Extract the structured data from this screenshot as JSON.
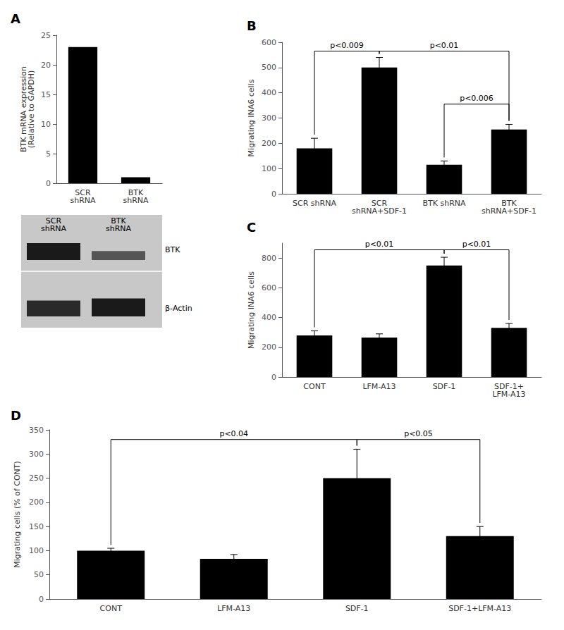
{
  "chart_data": [
    {
      "type": "bar",
      "title": "A",
      "categories": [
        "SCR\nshRNA",
        "BTK\nshRNA"
      ],
      "values": [
        23,
        1.0
      ],
      "ylabel": "BTK mRNA expression\n(Relative to GAPDH)",
      "ylim": [
        0,
        25
      ],
      "yticks": [
        0,
        5,
        10,
        15,
        20,
        25
      ],
      "color": "#000000",
      "grid": false
    },
    {
      "type": "blot",
      "annotations": [
        "SCR\nshRNA",
        "BTK\nshRNA",
        "BTK",
        "β-Actin"
      ]
    },
    {
      "type": "bar",
      "title": "B",
      "categories": [
        "SCR shRNA",
        "SCR\nshRNA+SDF-1",
        "BTK shRNA",
        "BTK\nshRNA+SDF-1"
      ],
      "values": [
        180,
        500,
        115,
        255
      ],
      "errors": [
        40,
        40,
        15,
        20
      ],
      "ylabel": "Migrating INA6 cells",
      "ylim": [
        0,
        600
      ],
      "yticks": [
        0,
        100,
        200,
        300,
        400,
        500,
        600
      ],
      "color": "#000000",
      "grid": false,
      "annotations": [
        {
          "text": "p<0.009",
          "x": [
            "SCR shRNA",
            "SCR\nshRNA+SDF-1"
          ],
          "y": 565
        },
        {
          "text": "p<0.01",
          "x": [
            "SCR\nshRNA+SDF-1",
            "BTK\nshRNA+SDF-1"
          ],
          "y": 565
        },
        {
          "text": "p<0.006",
          "x": [
            "BTK shRNA",
            "BTK\nshRNA+SDF-1"
          ],
          "y": 355
        }
      ]
    },
    {
      "type": "bar",
      "title": "C",
      "categories": [
        "CONT",
        "LFM-A13",
        "SDF-1",
        "SDF-1+\nLFM-A13"
      ],
      "values": [
        280,
        265,
        750,
        330
      ],
      "errors": [
        30,
        25,
        55,
        30
      ],
      "ylabel": "Migrating INA6 cells",
      "ylim": [
        0,
        900
      ],
      "yticks": [
        0,
        200,
        400,
        600,
        800
      ],
      "color": "#000000",
      "grid": false,
      "annotations": [
        {
          "text": "p<0.01",
          "x": [
            "CONT",
            "SDF-1"
          ],
          "y": 855
        },
        {
          "text": "p<0.01",
          "x": [
            "SDF-1",
            "SDF-1+\nLFM-A13"
          ],
          "y": 855
        }
      ]
    },
    {
      "type": "bar",
      "title": "D",
      "categories": [
        "CONT",
        "LFM-A13",
        "SDF-1",
        "SDF-1+LFM-A13"
      ],
      "values": [
        100,
        83,
        250,
        130
      ],
      "errors": [
        5,
        9,
        60,
        20
      ],
      "ylabel": "Migrating cells (% of CONT)",
      "ylim": [
        0,
        350
      ],
      "yticks": [
        0,
        50,
        100,
        150,
        200,
        250,
        300,
        350
      ],
      "color": "#000000",
      "grid": false,
      "annotations": [
        {
          "text": "p<0.04",
          "x": [
            "CONT",
            "SDF-1"
          ],
          "y": 330
        },
        {
          "text": "p<0.05",
          "x": [
            "SDF-1",
            "SDF-1+LFM-A13"
          ],
          "y": 330
        }
      ]
    }
  ]
}
